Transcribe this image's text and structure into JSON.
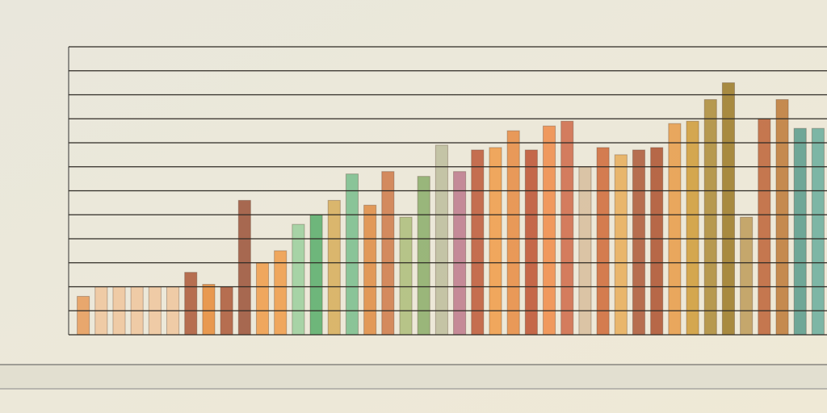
{
  "chart_data": {
    "type": "bar",
    "values": [
      1.6,
      2.0,
      2.0,
      2.0,
      2.0,
      2.0,
      2.6,
      2.1,
      2.0,
      5.6,
      3.0,
      3.5,
      4.6,
      5.0,
      5.6,
      6.7,
      5.4,
      6.8,
      4.9,
      6.6,
      7.9,
      6.8,
      7.7,
      7.8,
      8.5,
      7.7,
      8.7,
      8.9,
      7.0,
      7.8,
      7.5,
      7.7,
      7.8,
      8.8,
      8.9,
      9.8,
      10.5,
      4.9,
      9.0,
      9.8,
      8.6,
      8.6
    ],
    "colors": [
      "#e8a060",
      "#f0c8a0",
      "#f0c8a0",
      "#f0c8a0",
      "#f0c8a0",
      "#f0c8a0",
      "#b06040",
      "#e89040",
      "#b06040",
      "#a05a40",
      "#f0a050",
      "#f0a050",
      "#a0d0a0",
      "#60b070",
      "#d8b060",
      "#80c090",
      "#e0904a",
      "#d08050",
      "#b0c080",
      "#90b070",
      "#c0c0a0",
      "#c08090",
      "#c06040",
      "#f0a050",
      "#e8904a",
      "#c05a3a",
      "#f09050",
      "#d07050",
      "#d8c0a0",
      "#d07040",
      "#e8b060",
      "#b06040",
      "#b05a38",
      "#e8a050",
      "#d0a040",
      "#b09040",
      "#a08030",
      "#c0a060",
      "#c06a40",
      "#c08040",
      "#60a090",
      "#70b0a0"
    ],
    "ylim": [
      0,
      12
    ],
    "yticks": [
      0,
      1,
      2,
      3,
      4,
      5,
      6,
      7,
      8,
      9,
      10,
      11,
      12
    ],
    "grid": true
  }
}
